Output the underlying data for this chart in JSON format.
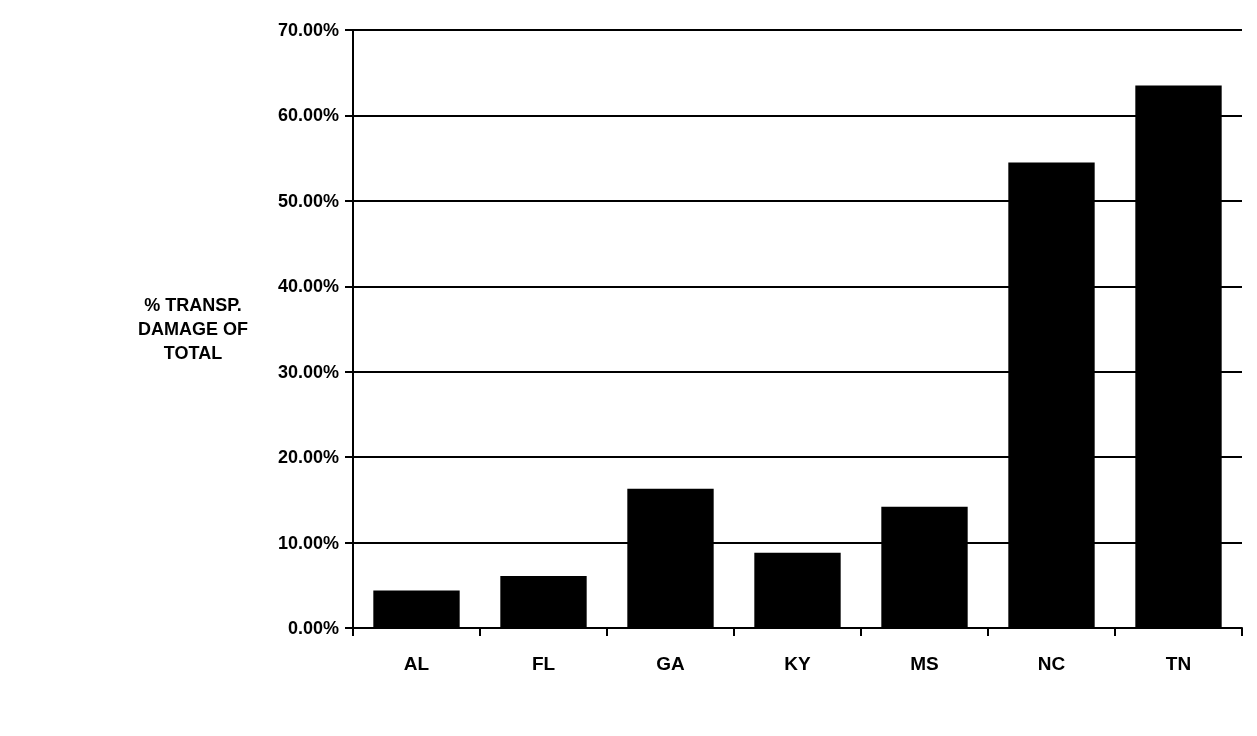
{
  "chart_data": {
    "type": "bar",
    "ylabel": "% TRANSP.\nDAMAGE OF\nTOTAL",
    "categories": [
      "AL",
      "FL",
      "GA",
      "KY",
      "MS",
      "NC",
      "TN"
    ],
    "values": [
      4.4,
      6.1,
      16.3,
      8.8,
      14.2,
      54.5,
      63.5
    ],
    "color": "#000000",
    "ylim": [
      0,
      70
    ],
    "yticks": [
      {
        "value": 0,
        "label": "0.00%"
      },
      {
        "value": 10,
        "label": "10.00%"
      },
      {
        "value": 20,
        "label": "20.00%"
      },
      {
        "value": 30,
        "label": "30.00%"
      },
      {
        "value": 40,
        "label": "40.00%"
      },
      {
        "value": 50,
        "label": "50.00%"
      },
      {
        "value": 60,
        "label": "60.00%"
      },
      {
        "value": 70,
        "label": "70.00%"
      }
    ],
    "grid": "y"
  }
}
